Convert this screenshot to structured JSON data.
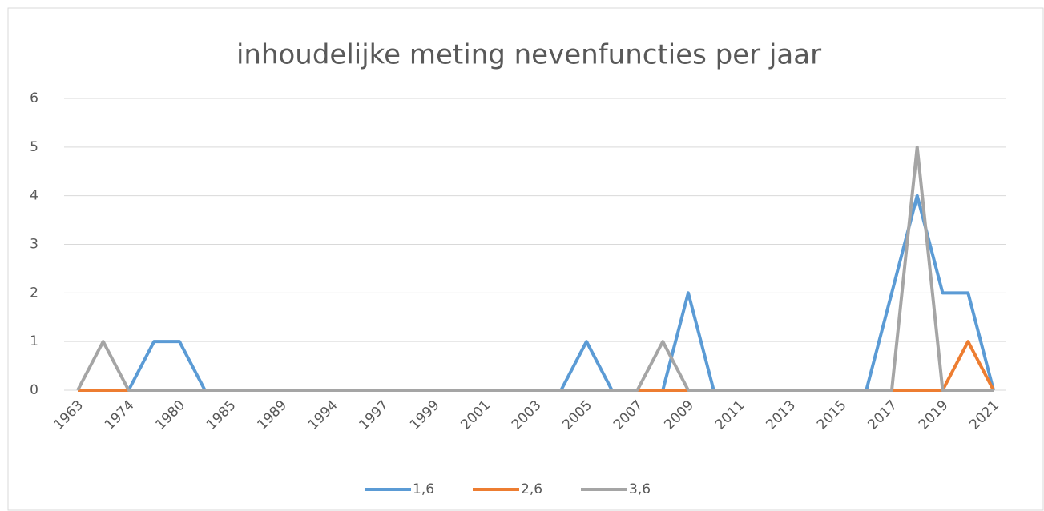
{
  "chart_data": {
    "type": "line",
    "title": "inhoudelijke meting nevenfuncties per jaar",
    "categories": [
      "1963",
      null,
      "1974",
      null,
      "1980",
      null,
      "1985",
      null,
      "1989",
      null,
      "1994",
      null,
      "1997",
      null,
      "1999",
      null,
      "2001",
      null,
      "2003",
      null,
      "2005",
      null,
      "2007",
      null,
      "2009",
      null,
      "2011",
      null,
      "2013",
      null,
      "2015",
      null,
      "2017",
      null,
      "2019",
      null,
      "2021"
    ],
    "series": [
      {
        "name": "1,6",
        "color": "#5b9bd5",
        "values": [
          0,
          0,
          0,
          1,
          1,
          0,
          0,
          0,
          0,
          0,
          0,
          0,
          0,
          0,
          0,
          0,
          0,
          0,
          0,
          0,
          1,
          0,
          0,
          0,
          2,
          0,
          0,
          0,
          0,
          0,
          0,
          0,
          2,
          4,
          2,
          2,
          0
        ]
      },
      {
        "name": "2,6",
        "color": "#ed7d31",
        "values": [
          0,
          0,
          0,
          0,
          0,
          0,
          0,
          0,
          0,
          0,
          0,
          0,
          0,
          0,
          0,
          0,
          0,
          0,
          0,
          0,
          0,
          0,
          0,
          0,
          0,
          0,
          0,
          0,
          0,
          0,
          0,
          0,
          0,
          0,
          0,
          1,
          0
        ]
      },
      {
        "name": "3,6",
        "color": "#a5a5a5",
        "values": [
          0,
          1,
          0,
          0,
          0,
          0,
          0,
          0,
          0,
          0,
          0,
          0,
          0,
          0,
          0,
          0,
          0,
          0,
          0,
          0,
          0,
          0,
          0,
          1,
          0,
          0,
          0,
          0,
          0,
          0,
          0,
          0,
          0,
          5,
          0,
          0,
          0
        ]
      }
    ],
    "ylim": [
      0,
      6
    ],
    "yticks": [
      0,
      1,
      2,
      3,
      4,
      5,
      6
    ],
    "grid": true,
    "legend": "bottom"
  }
}
